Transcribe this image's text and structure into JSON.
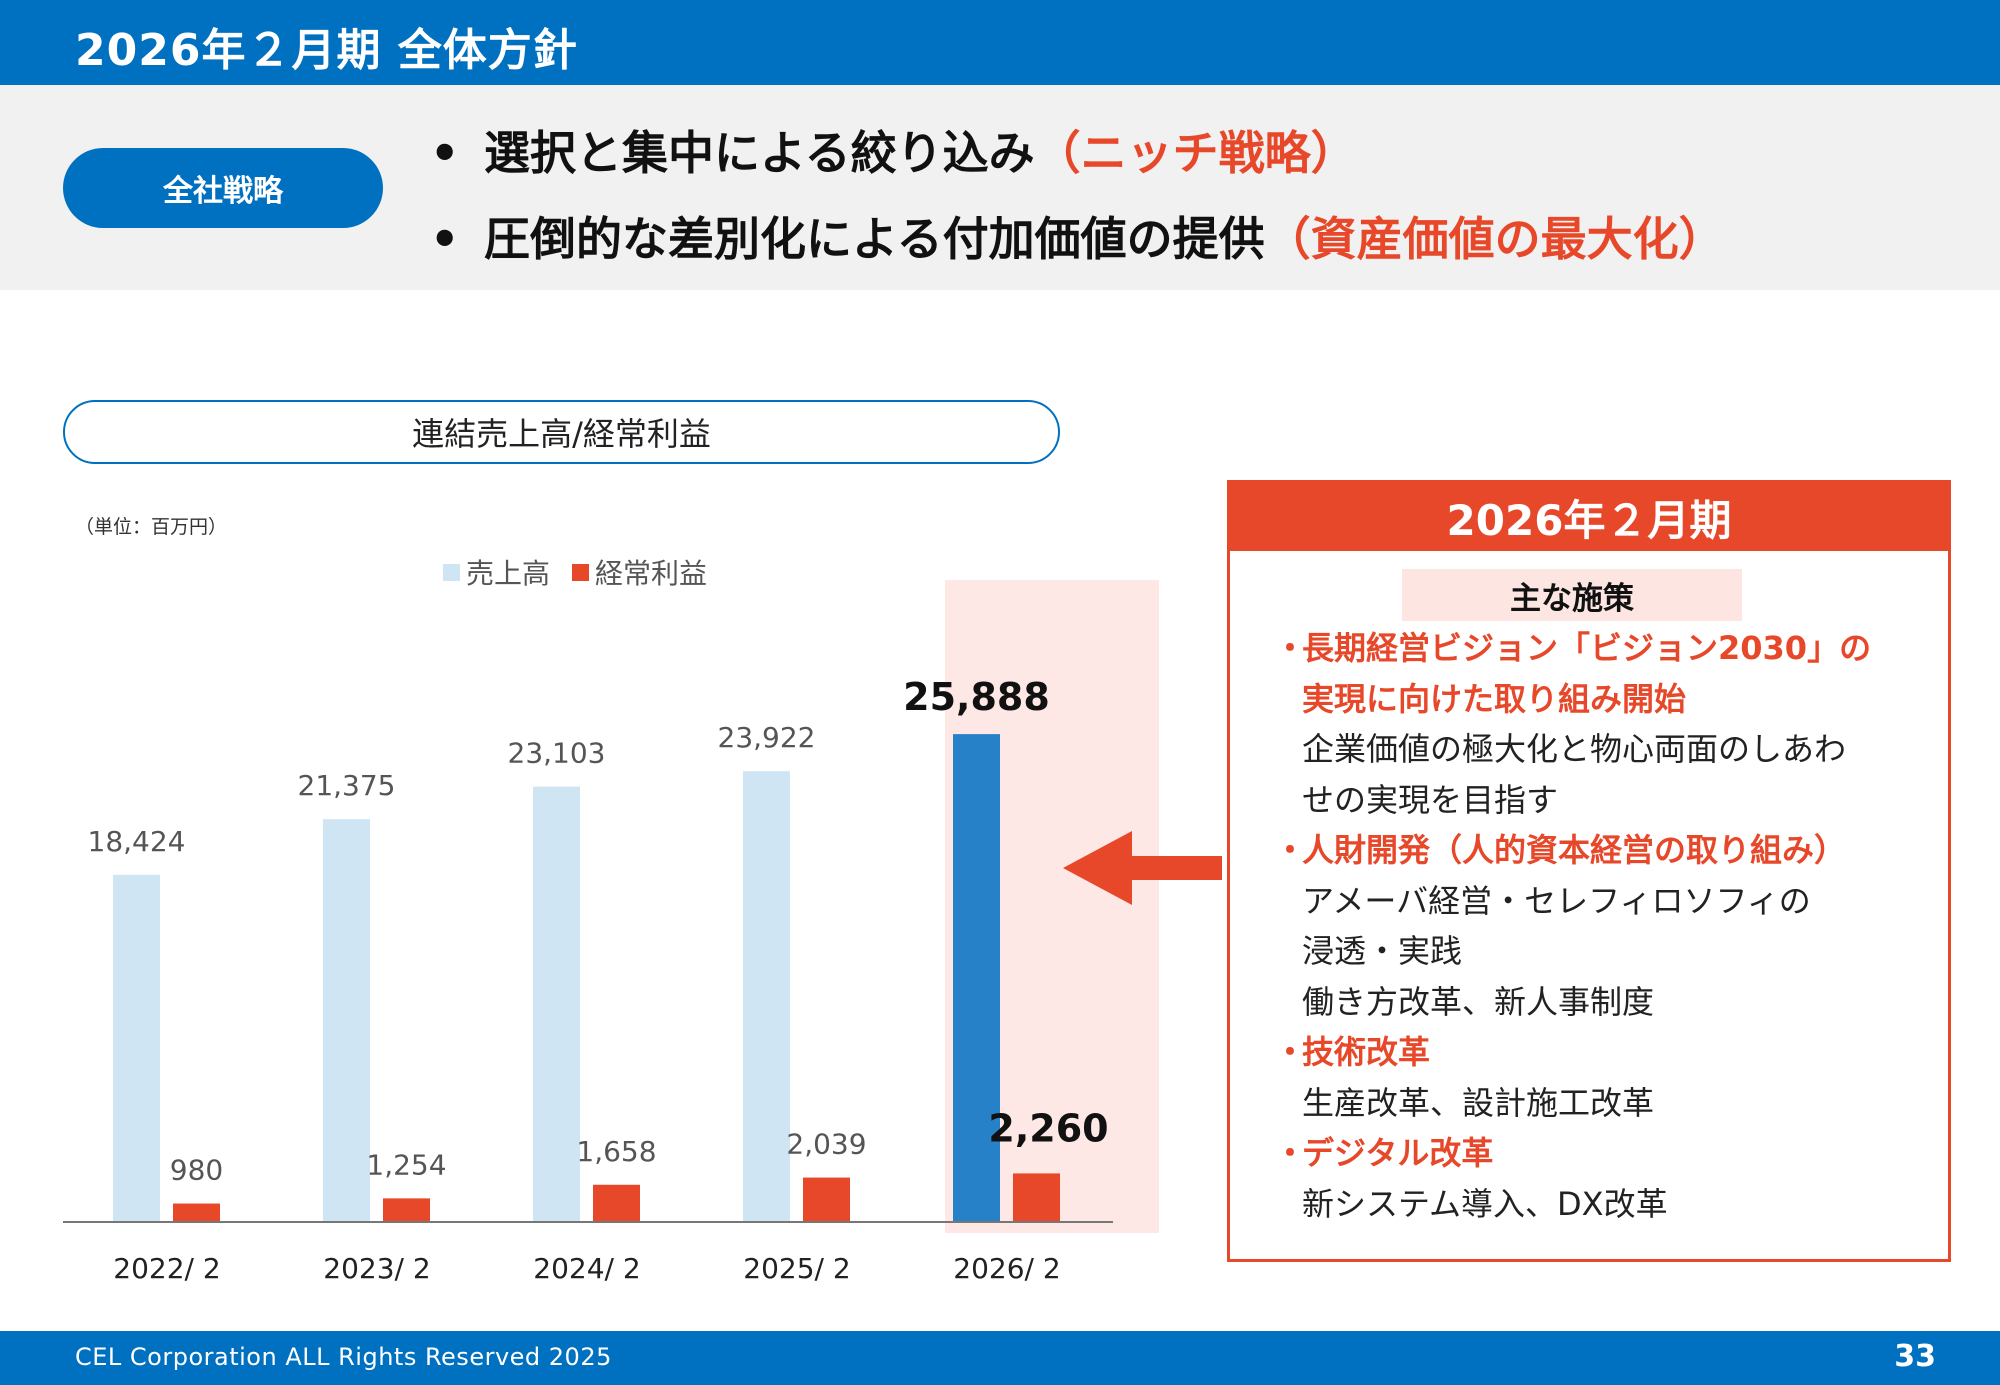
{
  "header": {
    "title": "2026年２月期 全体方針"
  },
  "strategy": {
    "label": "全社戦略",
    "lines": [
      {
        "bullet": "•",
        "text": "選択と集中による絞り込み",
        "accent": "（ニッチ戦略）"
      },
      {
        "bullet": "•",
        "text": "圧倒的な差別化による付加価値の提供",
        "accent": "（資産価値の最大化）"
      }
    ]
  },
  "chart_data": {
    "type": "bar",
    "title": "連結売上高/経常利益",
    "unit": "（単位：百万円）",
    "categories": [
      "2022/ 2",
      "2023/ 2",
      "2024/ 2",
      "2025/ 2",
      "2026/ 2"
    ],
    "series": [
      {
        "name": "売上高",
        "values": [
          18424,
          21375,
          23103,
          23922,
          25888
        ],
        "labels": [
          "18,424",
          "21,375",
          "23,103",
          "23,922",
          "25,888"
        ]
      },
      {
        "name": "経常利益",
        "values": [
          980,
          1254,
          1658,
          2039,
          2260
        ],
        "labels": [
          "980",
          "1,254",
          "1,658",
          "2,039",
          "2,260"
        ]
      }
    ],
    "highlight_category": "2026/ 2",
    "ylim": [
      0,
      30000
    ],
    "grid": false,
    "legend_position": "top",
    "colors": {
      "sales": "#d0e5f4",
      "sales_highlight": "#2681c8",
      "profit": "#e8482a",
      "highlight_band": "#fde8e5",
      "axis": "#777777"
    }
  },
  "panel": {
    "title": "2026年２月期",
    "subtitle": "主な施策",
    "items": [
      {
        "bullet": "・",
        "head_lines": [
          "長期経営ビジョン「ビジョン2030」の",
          "実現に向けた取り組み開始"
        ],
        "lines": [
          "企業価値の極大化と物心両面のしあわ",
          "せの実現を目指す"
        ]
      },
      {
        "bullet": "・",
        "head_lines": [
          "人財開発（人的資本経営の取り組み）"
        ],
        "lines": [
          "アメーバ経営・セレフィロソフィの",
          "浸透・実践",
          "働き方改革、新人事制度"
        ]
      },
      {
        "bullet": "・",
        "head_lines": [
          "技術改革"
        ],
        "lines": [
          "生産改革、設計施工改革"
        ]
      },
      {
        "bullet": "・",
        "head_lines": [
          "デジタル改革"
        ],
        "lines": [
          "新システム導入、DX改革"
        ]
      }
    ]
  },
  "footer": {
    "copyright": "CEL Corporation ALL Rights Reserved 2025",
    "page": "33"
  },
  "icons": {
    "arrow": "left-arrow-icon"
  }
}
